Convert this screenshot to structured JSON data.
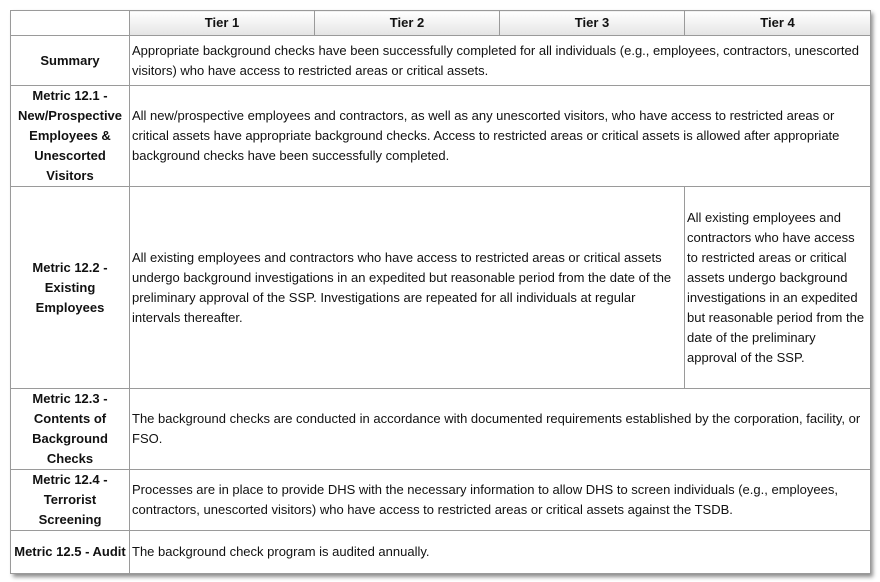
{
  "table": {
    "header": [
      "Tier 1",
      "Tier 2",
      "Tier 3",
      "Tier 4"
    ],
    "rows": [
      {
        "label": "Summary",
        "cells": [
          "Appropriate background checks have been successfully completed for all individuals (e.g., employees, contractors, unescorted visitors) who have access to restricted areas or critical assets."
        ]
      },
      {
        "label": "Metric 12.1 - New/Prospective Employees & Unescorted Visitors",
        "cells": [
          "All new/prospective employees and contractors, as well as any unescorted visitors, who have access to restricted areas or critical assets have appropriate background checks.  Access to restricted areas or critical assets is allowed after appropriate background checks have been successfully completed."
        ]
      },
      {
        "label": "Metric 12.2 - Existing Employees",
        "cells": [
          "All existing employees and contractors who have access to restricted areas or critical assets undergo background investigations in an expedited but reasonable period from the date of the preliminary approval of the SSP.  Investigations are repeated for all individuals at regular intervals thereafter.",
          "All existing employees and contractors who have access to restricted areas or critical assets undergo background investigations in an expedited but reasonable period from the date of the preliminary approval of the SSP."
        ]
      },
      {
        "label": "Metric 12.3 - Contents of Background Checks",
        "cells": [
          "The background checks are conducted in accordance with documented requirements established by the corporation, facility, or FSO."
        ]
      },
      {
        "label": "Metric 12.4 - Terrorist Screening",
        "cells": [
          "Processes are in place to provide DHS with the necessary information to allow DHS to screen individuals (e.g., employees, contractors, unescorted visitors) who have access to restricted areas or critical assets against the TSDB."
        ]
      },
      {
        "label": "Metric 12.5 - Audit",
        "cells": [
          "The background check program is audited annually."
        ]
      }
    ]
  }
}
